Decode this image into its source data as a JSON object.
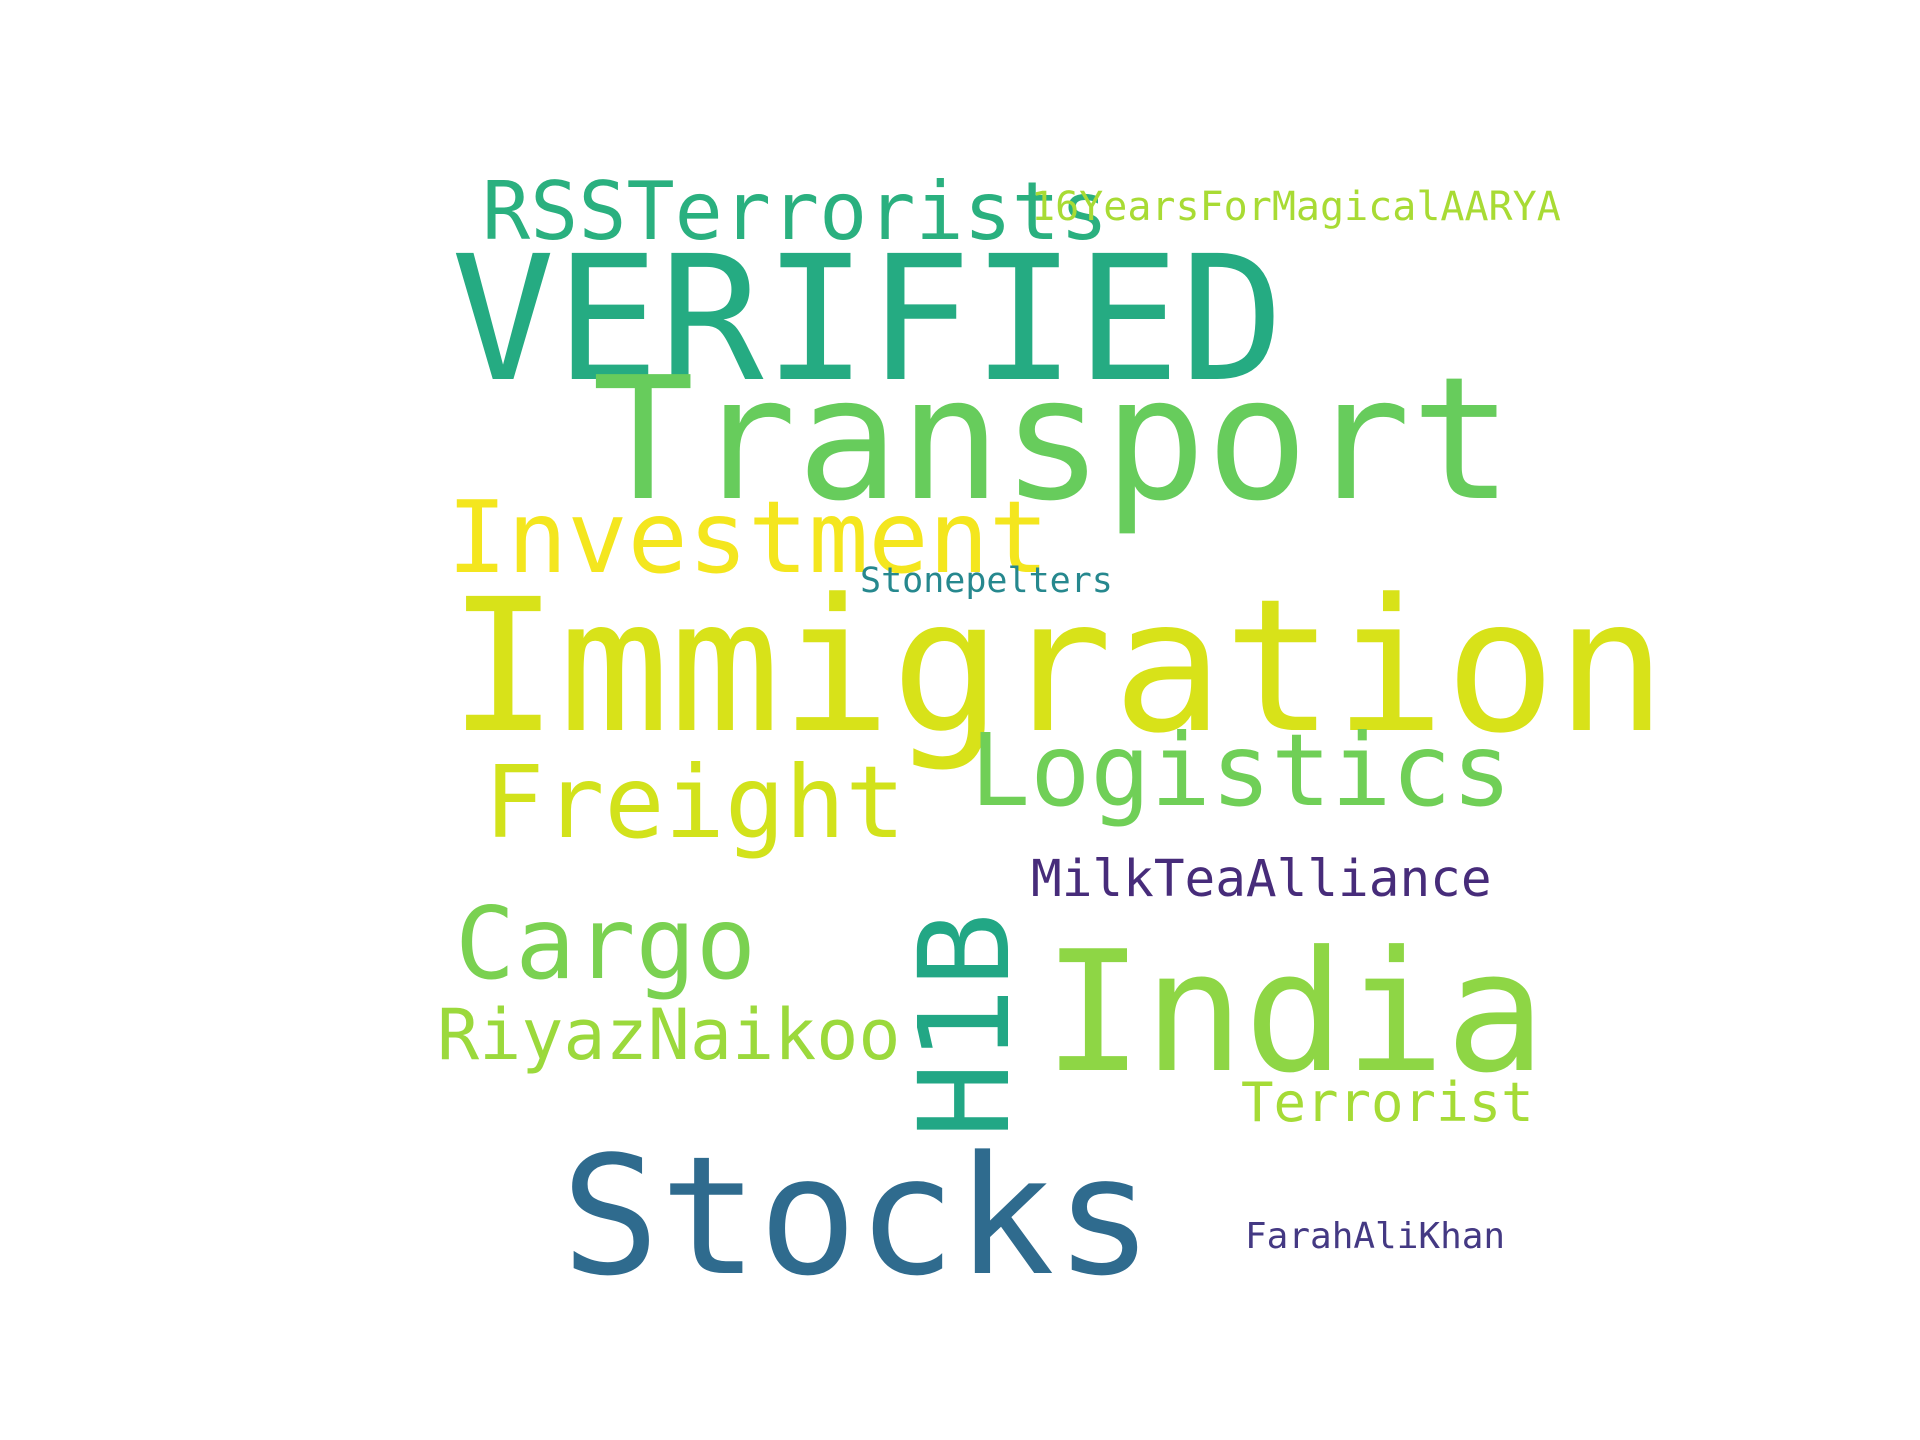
{
  "words": [
    {
      "text": "RSSTerrorists",
      "color": "#2ab07f"
    },
    {
      "text": "16YearsForMagicalAARYA",
      "color": "#a8db34"
    },
    {
      "text": "VERIFIED",
      "color": "#25ab82"
    },
    {
      "text": "Transport",
      "color": "#67cc5c"
    },
    {
      "text": "Investment",
      "color": "#f4e61e"
    },
    {
      "text": "Stonepelters",
      "color": "#26888e"
    },
    {
      "text": "Immigration",
      "color": "#d8e219"
    },
    {
      "text": "Logistics",
      "color": "#70cf57"
    },
    {
      "text": "Freight",
      "color": "#d2e21b"
    },
    {
      "text": "MilkTeaAlliance",
      "color": "#472c7a"
    },
    {
      "text": "Cargo",
      "color": "#7ad151"
    },
    {
      "text": "India",
      "color": "#8ed645"
    },
    {
      "text": "RiyazNaikoo",
      "color": "#9bd93c"
    },
    {
      "text": "H1B",
      "color": "#22a785"
    },
    {
      "text": "Terrorist",
      "color": "#a5db36"
    },
    {
      "text": "Stocks",
      "color": "#2f6b8e"
    },
    {
      "text": "FarahAliKhan",
      "color": "#443983"
    }
  ]
}
